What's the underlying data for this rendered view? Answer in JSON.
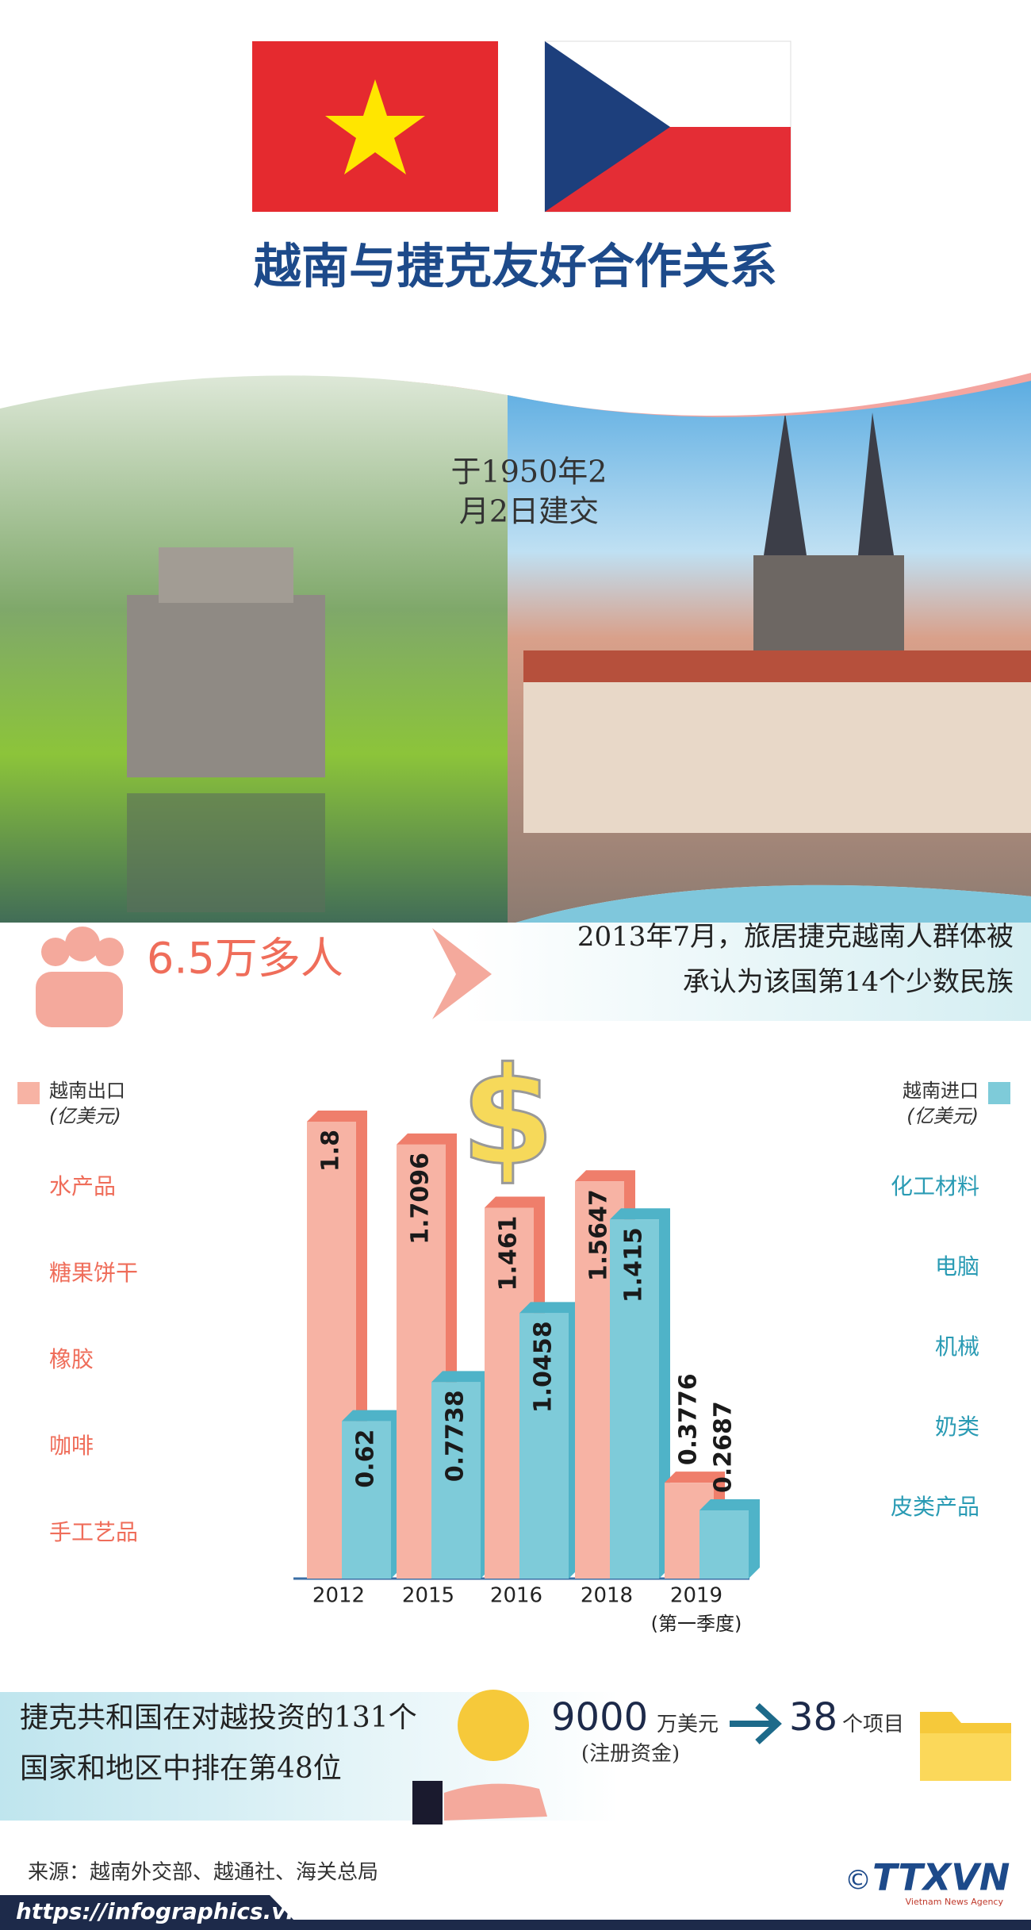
{
  "header": {
    "title": "越南与捷克友好合作关系"
  },
  "established": [
    "于1950年2",
    "月2日建交"
  ],
  "community": {
    "count": "6.5万多人",
    "note": [
      "2013年7月，旅居捷克越南人群体被",
      "承认为该国第14个少数民族"
    ]
  },
  "chart_data": {
    "type": "bar",
    "categories": [
      "2012",
      "2015",
      "2016",
      "2018",
      "2019"
    ],
    "category_note": "(第一季度)",
    "series": [
      {
        "name": "越南出口",
        "unit": "(亿美元)",
        "color": "#f7b3a4",
        "values": [
          1.8,
          1.7096,
          1.461,
          1.5647,
          0.3776
        ]
      },
      {
        "name": "越南进口",
        "unit": "(亿美元)",
        "color": "#7ecbd9",
        "values": [
          0.62,
          0.7738,
          1.0458,
          1.415,
          0.2687
        ]
      }
    ],
    "ylim": [
      0,
      1.85
    ],
    "export_products": [
      "水产品",
      "糖果饼干",
      "橡胶",
      "咖啡",
      "手工艺品"
    ],
    "import_products": [
      "化工材料",
      "电脑",
      "机械",
      "奶类",
      "皮类产品"
    ]
  },
  "investment": {
    "rank": [
      "捷克共和国在对越投资的131个",
      "国家和地区中排在第48位"
    ],
    "capital": "9000",
    "capital_unit": "万美元",
    "capital_note": "(注册资金)",
    "projects": "38",
    "projects_unit": "个项目"
  },
  "footer": {
    "source": "来源：越南外交部、越通社、海关总局",
    "url": "https://infographics.vn",
    "logo": "TTXVN",
    "logo_sub": "Vietnam News Agency",
    "copyright": "©"
  }
}
